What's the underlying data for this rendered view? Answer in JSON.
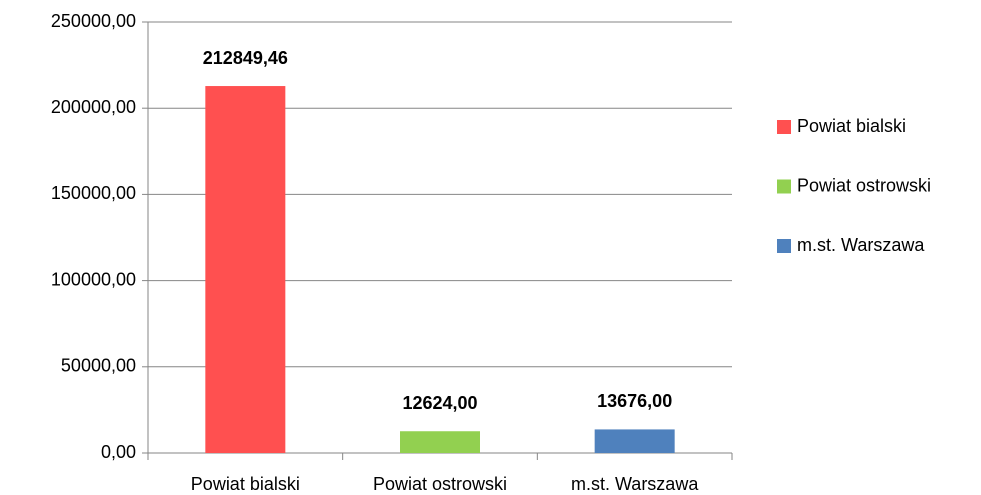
{
  "chart_data": {
    "type": "bar",
    "categories": [
      "Powiat bialski",
      "Powiat ostrowski",
      "m.st. Warszawa"
    ],
    "values": [
      212849.46,
      12624,
      13676
    ],
    "value_labels": [
      "212849,46",
      "12624,00",
      "13676,00"
    ],
    "colors": [
      "#ff5050",
      "#92d050",
      "#4f81bd"
    ],
    "ylim": [
      0,
      250000
    ],
    "yticks": [
      {
        "value": 0,
        "label": "0,00"
      },
      {
        "value": 50000,
        "label": "50000,00"
      },
      {
        "value": 100000,
        "label": "100000,00"
      },
      {
        "value": 150000,
        "label": "150000,00"
      },
      {
        "value": 200000,
        "label": "200000,00"
      },
      {
        "value": 250000,
        "label": "250000,00"
      }
    ],
    "grid": true,
    "legend": "right"
  }
}
